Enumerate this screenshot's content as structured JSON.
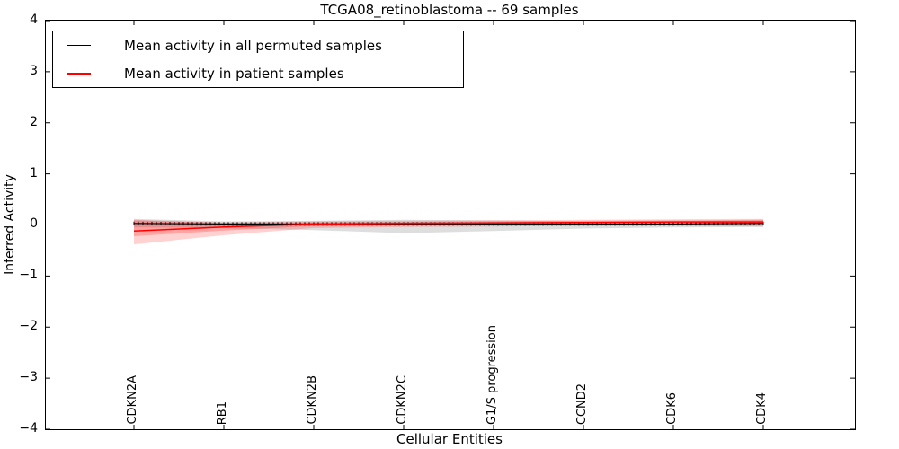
{
  "title": "TCGA08_retinoblastoma -- 69 samples",
  "legend": {
    "items": [
      {
        "label": "Mean activity in all permuted samples",
        "color": "#000000"
      },
      {
        "label": "Mean activity in patient samples",
        "color": "#ff0000"
      }
    ],
    "position": "upper left"
  },
  "chart_data": {
    "type": "line",
    "title": "TCGA08_retinoblastoma -- 69 samples",
    "xlabel": "Cellular Entities",
    "ylabel": "Inferred Activity",
    "ylim": [
      -4,
      4
    ],
    "grid": false,
    "legend_position": "upper left",
    "ytick_labels": [
      "4",
      "3",
      "2",
      "1",
      "0",
      "−1",
      "−2",
      "−3",
      "−4"
    ],
    "categories": [
      "CDKN2A",
      "RB1",
      "CDKN2B",
      "CDKN2C",
      "G1/S progression",
      "CCND2",
      "CDK6",
      "CDK4"
    ],
    "series": [
      {
        "name": "Mean activity in all permuted samples",
        "color": "#000000",
        "values": [
          0.03,
          0.02,
          0.02,
          0.02,
          0.02,
          0.02,
          0.02,
          0.03
        ],
        "band_upper": [
          0.12,
          0.07,
          0.08,
          0.1,
          0.09,
          0.07,
          0.07,
          0.09
        ],
        "band_lower": [
          -0.05,
          -0.06,
          -0.1,
          -0.16,
          -0.12,
          -0.07,
          -0.05,
          -0.04
        ],
        "band_color": "rgba(0,0,0,0.13)"
      },
      {
        "name": "Mean activity in patient samples",
        "color": "#ff0000",
        "values": [
          -0.12,
          -0.04,
          0.02,
          0.03,
          0.04,
          0.05,
          0.06,
          0.06
        ],
        "band_upper": [
          0.1,
          0.05,
          0.07,
          0.08,
          0.09,
          0.1,
          0.11,
          0.12
        ],
        "band_lower": [
          -0.38,
          -0.2,
          -0.06,
          -0.04,
          -0.03,
          -0.02,
          -0.01,
          -0.03
        ],
        "inner_band_upper": [
          0.09,
          0.04,
          0.05,
          0.06,
          0.07,
          0.08,
          0.09,
          0.1
        ],
        "inner_band_lower": [
          -0.22,
          -0.11,
          -0.02,
          -0.01,
          0.0,
          0.01,
          0.02,
          0.02
        ],
        "band_color": "rgba(255,0,0,0.18)",
        "inner_band_color": "rgba(255,0,0,0.22)"
      }
    ]
  }
}
